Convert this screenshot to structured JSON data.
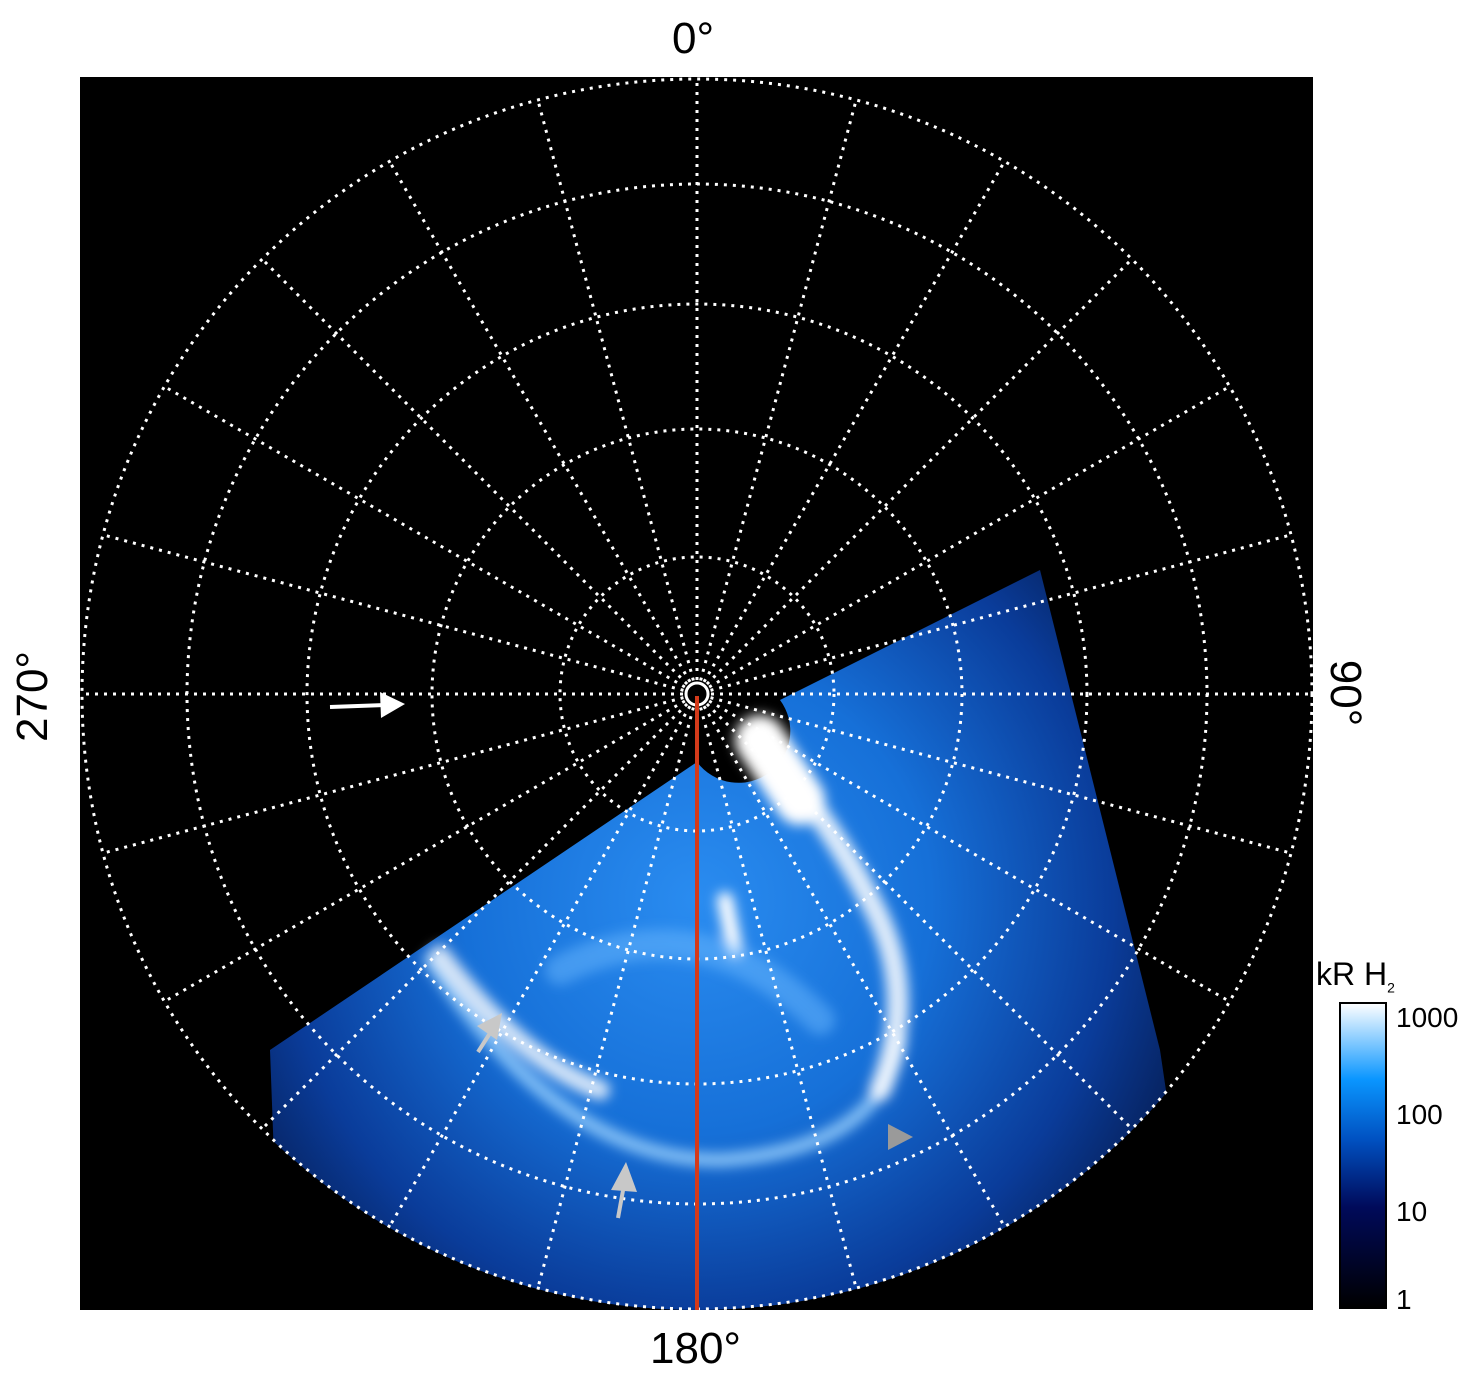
{
  "figure": {
    "labels": {
      "top": "0°",
      "right": "90°",
      "bottom": "180°",
      "left": "270°"
    },
    "colorbar": {
      "title": "kR H",
      "title_subscript": "2",
      "scale": "log",
      "ticks": [
        "1000",
        "100",
        "10",
        "1"
      ],
      "colors": [
        "#000000",
        "#000a5a",
        "#0050c0",
        "#0a96ff",
        "#ffffff"
      ]
    },
    "colors": {
      "background": "#000000",
      "grid": "#ffffff",
      "meridian_line": "#d43a1a",
      "arrow_white": "#ffffff",
      "arrow_grey": "#c8c8c8",
      "marker_grey": "#9a9a9a"
    }
  }
}
